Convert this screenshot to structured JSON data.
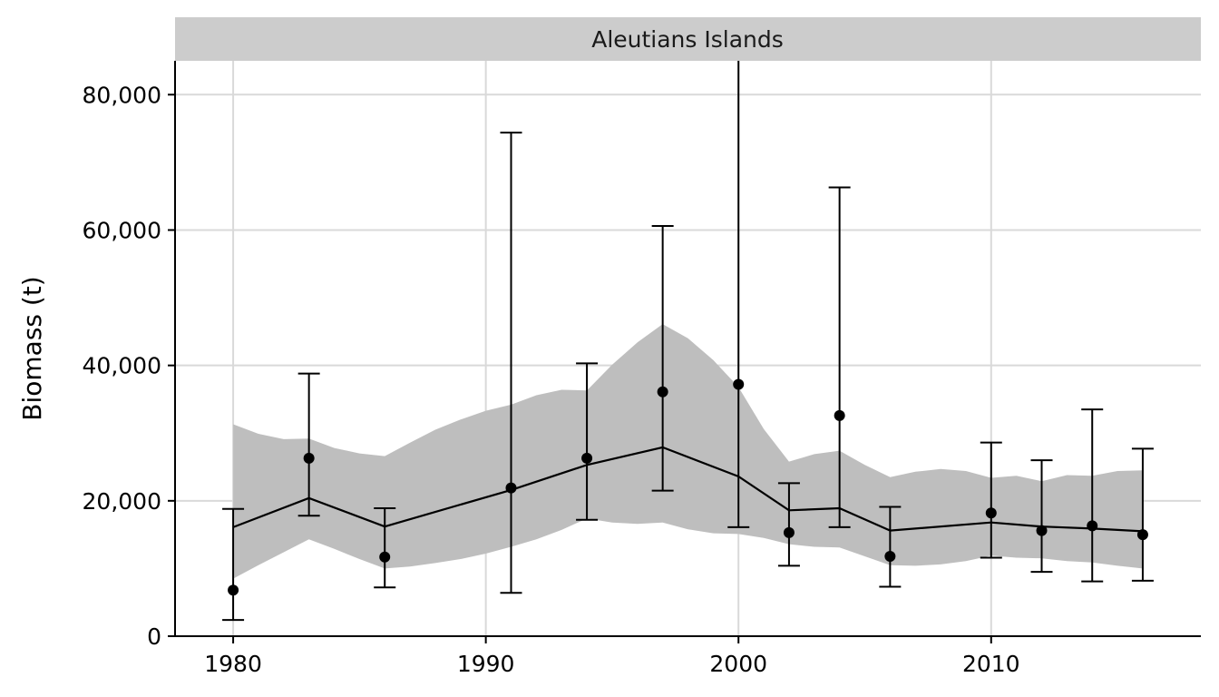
{
  "chart_data": {
    "type": "line",
    "facet_title": "Aleutians Islands",
    "xlabel": "",
    "ylabel": "Biomass (t)",
    "xlim": [
      1977.7,
      2018.3
    ],
    "ylim": [
      0,
      85000
    ],
    "x_ticks": [
      1980,
      1990,
      2000,
      2010
    ],
    "x_tick_labels": [
      "1980",
      "1990",
      "2000",
      "2010"
    ],
    "y_ticks": [
      0,
      20000,
      40000,
      60000,
      80000
    ],
    "y_tick_labels": [
      "0",
      "20,000",
      "40,000",
      "60,000",
      "80,000"
    ],
    "grid": true,
    "colors": {
      "band": "#bebebe",
      "line": "#000000",
      "grid": "#d9d9d9",
      "strip": "#cccccc"
    },
    "model_band": [
      {
        "x": 1980,
        "lo": 8500,
        "hi": 31300
      },
      {
        "x": 1981,
        "lo": 10500,
        "hi": 29900
      },
      {
        "x": 1982,
        "lo": 12400,
        "hi": 29100
      },
      {
        "x": 1983,
        "lo": 14300,
        "hi": 29200
      },
      {
        "x": 1984,
        "lo": 12900,
        "hi": 27800
      },
      {
        "x": 1985,
        "lo": 11400,
        "hi": 27000
      },
      {
        "x": 1986,
        "lo": 10000,
        "hi": 26600
      },
      {
        "x": 1987,
        "lo": 10300,
        "hi": 28600
      },
      {
        "x": 1988,
        "lo": 10800,
        "hi": 30500
      },
      {
        "x": 1989,
        "lo": 11400,
        "hi": 32000
      },
      {
        "x": 1990,
        "lo": 12200,
        "hi": 33300
      },
      {
        "x": 1991,
        "lo": 13200,
        "hi": 34200
      },
      {
        "x": 1992,
        "lo": 14300,
        "hi": 35600
      },
      {
        "x": 1993,
        "lo": 15700,
        "hi": 36400
      },
      {
        "x": 1994,
        "lo": 17400,
        "hi": 36300
      },
      {
        "x": 1995,
        "lo": 16800,
        "hi": 40100
      },
      {
        "x": 1996,
        "lo": 16600,
        "hi": 43400
      },
      {
        "x": 1997,
        "lo": 16800,
        "hi": 46100
      },
      {
        "x": 1998,
        "lo": 15800,
        "hi": 44000
      },
      {
        "x": 1999,
        "lo": 15200,
        "hi": 40800
      },
      {
        "x": 2000,
        "lo": 15100,
        "hi": 36800
      },
      {
        "x": 2001,
        "lo": 14500,
        "hi": 30600
      },
      {
        "x": 2002,
        "lo": 13600,
        "hi": 25800
      },
      {
        "x": 2003,
        "lo": 13200,
        "hi": 26900
      },
      {
        "x": 2004,
        "lo": 13100,
        "hi": 27400
      },
      {
        "x": 2005,
        "lo": 11800,
        "hi": 25300
      },
      {
        "x": 2006,
        "lo": 10500,
        "hi": 23500
      },
      {
        "x": 2007,
        "lo": 10400,
        "hi": 24300
      },
      {
        "x": 2008,
        "lo": 10600,
        "hi": 24700
      },
      {
        "x": 2009,
        "lo": 11100,
        "hi": 24400
      },
      {
        "x": 2010,
        "lo": 11900,
        "hi": 23400
      },
      {
        "x": 2011,
        "lo": 11600,
        "hi": 23700
      },
      {
        "x": 2012,
        "lo": 11500,
        "hi": 22900
      },
      {
        "x": 2013,
        "lo": 11100,
        "hi": 23800
      },
      {
        "x": 2014,
        "lo": 10900,
        "hi": 23700
      },
      {
        "x": 2015,
        "lo": 10400,
        "hi": 24400
      },
      {
        "x": 2016,
        "lo": 10000,
        "hi": 24500
      }
    ],
    "model_line": [
      {
        "x": 1980,
        "y": 16100
      },
      {
        "x": 1983,
        "y": 20400
      },
      {
        "x": 1986,
        "y": 16200
      },
      {
        "x": 1991,
        "y": 21600
      },
      {
        "x": 1994,
        "y": 25300
      },
      {
        "x": 1997,
        "y": 27900
      },
      {
        "x": 2000,
        "y": 23600
      },
      {
        "x": 2002,
        "y": 18600
      },
      {
        "x": 2004,
        "y": 18900
      },
      {
        "x": 2006,
        "y": 15600
      },
      {
        "x": 2010,
        "y": 16800
      },
      {
        "x": 2012,
        "y": 16200
      },
      {
        "x": 2014,
        "y": 15900
      },
      {
        "x": 2016,
        "y": 15500
      }
    ],
    "observed": [
      {
        "x": 1980,
        "y": 6800,
        "lo": 2400,
        "hi": 18800
      },
      {
        "x": 1983,
        "y": 26300,
        "lo": 17800,
        "hi": 38800
      },
      {
        "x": 1986,
        "y": 11700,
        "lo": 7200,
        "hi": 18900
      },
      {
        "x": 1991,
        "y": 21900,
        "lo": 6400,
        "hi": 74400
      },
      {
        "x": 1994,
        "y": 26300,
        "lo": 17200,
        "hi": 40300
      },
      {
        "x": 1997,
        "y": 36100,
        "lo": 21500,
        "hi": 60600
      },
      {
        "x": 2000,
        "y": 37200,
        "lo": 16100,
        "hi": 86000
      },
      {
        "x": 2002,
        "y": 15300,
        "lo": 10400,
        "hi": 22600
      },
      {
        "x": 2004,
        "y": 32600,
        "lo": 16100,
        "hi": 66300
      },
      {
        "x": 2006,
        "y": 11800,
        "lo": 7300,
        "hi": 19100
      },
      {
        "x": 2010,
        "y": 18200,
        "lo": 11600,
        "hi": 28600
      },
      {
        "x": 2012,
        "y": 15600,
        "lo": 9500,
        "hi": 26000
      },
      {
        "x": 2014,
        "y": 16300,
        "lo": 8100,
        "hi": 33500
      },
      {
        "x": 2016,
        "y": 15000,
        "lo": 8200,
        "hi": 27700
      }
    ]
  }
}
